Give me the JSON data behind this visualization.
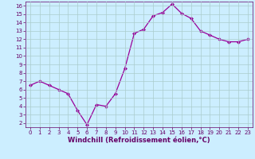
{
  "x": [
    0,
    1,
    2,
    3,
    4,
    5,
    6,
    7,
    8,
    9,
    10,
    11,
    12,
    13,
    14,
    15,
    16,
    17,
    18,
    19,
    20,
    21,
    22,
    23
  ],
  "y": [
    6.5,
    7.0,
    6.5,
    6.0,
    5.5,
    3.5,
    1.8,
    4.2,
    4.0,
    5.5,
    8.5,
    12.7,
    13.2,
    14.8,
    15.2,
    16.2,
    15.1,
    14.5,
    13.0,
    12.5,
    12.0,
    11.7,
    11.7,
    12.0
  ],
  "line_color": "#990099",
  "marker": "D",
  "marker_size": 2,
  "bg_color": "#cceeff",
  "grid_color": "#aacccc",
  "xlabel": "Windchill (Refroidissement éolien,°C)",
  "xlabel_color": "#660066",
  "tick_color": "#660066",
  "ylim": [
    1.5,
    16.5
  ],
  "xlim": [
    -0.5,
    23.5
  ],
  "yticks": [
    2,
    3,
    4,
    5,
    6,
    7,
    8,
    9,
    10,
    11,
    12,
    13,
    14,
    15,
    16
  ],
  "xticks": [
    0,
    1,
    2,
    3,
    4,
    5,
    6,
    7,
    8,
    9,
    10,
    11,
    12,
    13,
    14,
    15,
    16,
    17,
    18,
    19,
    20,
    21,
    22,
    23
  ],
  "spine_color": "#660066",
  "tick_fontsize": 5.0,
  "xlabel_fontsize": 6.0,
  "linewidth": 0.9
}
